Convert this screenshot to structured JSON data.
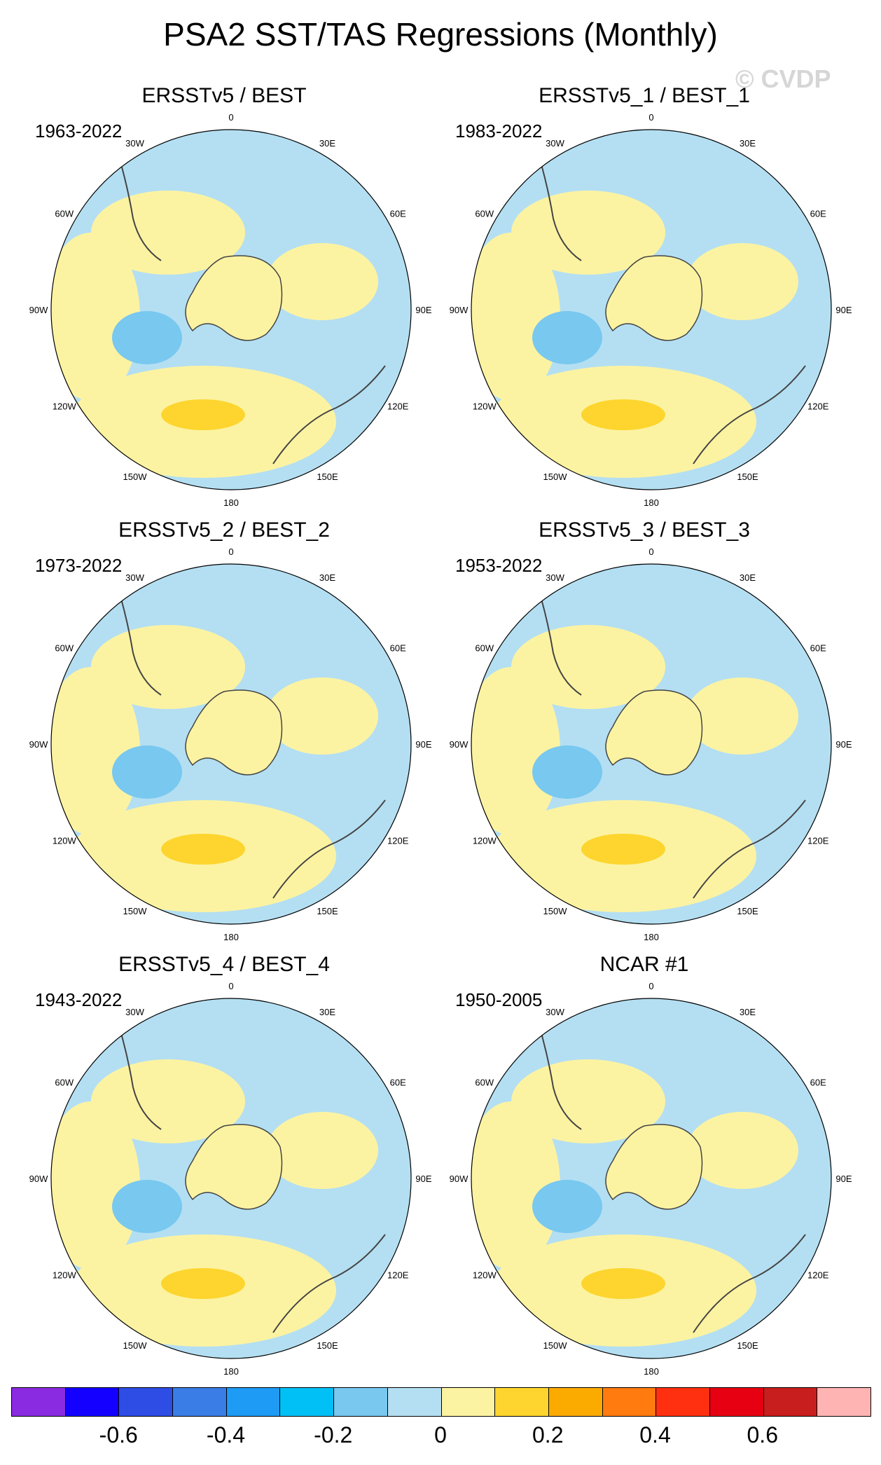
{
  "title": "PSA2 SST/TAS Regressions (Monthly)",
  "watermark": "© CVDP",
  "lon_labels": [
    "0",
    "30E",
    "60E",
    "90E",
    "120E",
    "150E",
    "180",
    "150W",
    "120W",
    "90W",
    "60W",
    "30W"
  ],
  "panels": [
    {
      "title": "ERSSTv5 / BEST",
      "years": "1963-2022"
    },
    {
      "title": "ERSSTv5_1 / BEST_1",
      "years": "1983-2022"
    },
    {
      "title": "ERSSTv5_2 / BEST_2",
      "years": "1973-2022"
    },
    {
      "title": "ERSSTv5_3 / BEST_3",
      "years": "1953-2022"
    },
    {
      "title": "ERSSTv5_4 / BEST_4",
      "years": "1943-2022"
    },
    {
      "title": "NCAR #1",
      "years": "1950-2005"
    }
  ],
  "colorbar": {
    "colors": [
      "#8a2be2",
      "#1400ff",
      "#2e4de5",
      "#3a7de6",
      "#1e9bf5",
      "#00c0f5",
      "#78c8f0",
      "#b4dff2",
      "#fcf3a2",
      "#fdd52e",
      "#fbab00",
      "#ff7a0f",
      "#fe3010",
      "#e60012",
      "#c81e1e",
      "#ffb4b4"
    ],
    "labels": [
      "-0.6",
      "-0.4",
      "-0.2",
      "0",
      "0.2",
      "0.4",
      "0.6"
    ]
  }
}
